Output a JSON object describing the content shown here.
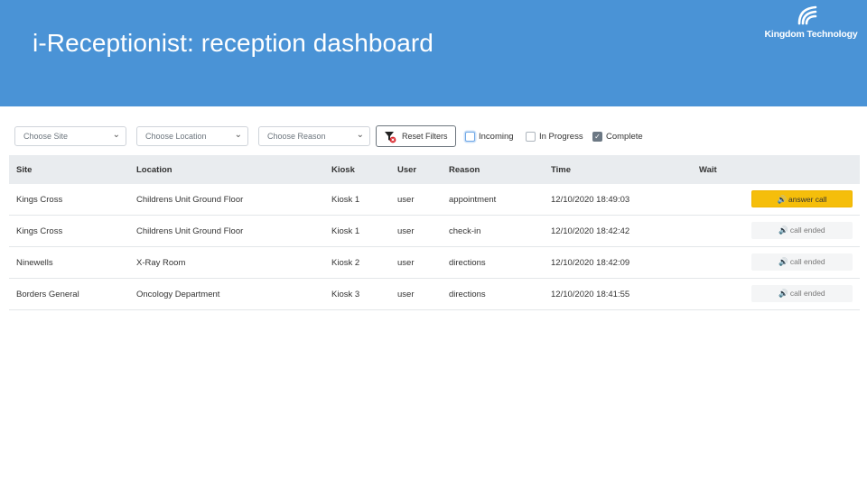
{
  "header": {
    "title": "i-Receptionist: reception dashboard",
    "logo_text": "Kingdom Technology"
  },
  "filters": {
    "site_placeholder": "Choose Site",
    "location_placeholder": "Choose Location",
    "reason_placeholder": "Choose Reason",
    "reset_label": "Reset Filters",
    "checkboxes": [
      {
        "label": "Incoming",
        "checked": false
      },
      {
        "label": "In Progress",
        "checked": false
      },
      {
        "label": "Complete",
        "checked": true
      }
    ]
  },
  "table": {
    "columns": [
      "Site",
      "Location",
      "Kiosk",
      "User",
      "Reason",
      "Time",
      "Wait"
    ],
    "rows": [
      {
        "site": "Kings Cross",
        "location": "Childrens Unit Ground Floor",
        "kiosk": "Kiosk 1",
        "user": "user",
        "reason": "appointment",
        "time": "12/10/2020 18:49:03",
        "action": "answer call"
      },
      {
        "site": "Kings Cross",
        "location": "Childrens Unit Ground Floor",
        "kiosk": "Kiosk 1",
        "user": "user",
        "reason": "check-in",
        "time": "12/10/2020 18:42:42",
        "action": "call ended"
      },
      {
        "site": "Ninewells",
        "location": "X-Ray Room",
        "kiosk": "Kiosk 2",
        "user": "user",
        "reason": "directions",
        "time": "12/10/2020 18:42:09",
        "action": "call ended"
      },
      {
        "site": "Borders General",
        "location": "Oncology Department",
        "kiosk": "Kiosk 3",
        "user": "user",
        "reason": "directions",
        "time": "12/10/2020 18:41:55",
        "action": "call ended"
      }
    ]
  },
  "colors": {
    "header_bg": "#4a93d6",
    "answer_button": "#f5be0b",
    "ended_button": "#f4f5f6"
  },
  "icons": {
    "logo": "kingdom-logo-icon",
    "funnel": "filter-reset-icon",
    "speaker": "speaker-icon",
    "chevron": "chevron-down-icon"
  }
}
